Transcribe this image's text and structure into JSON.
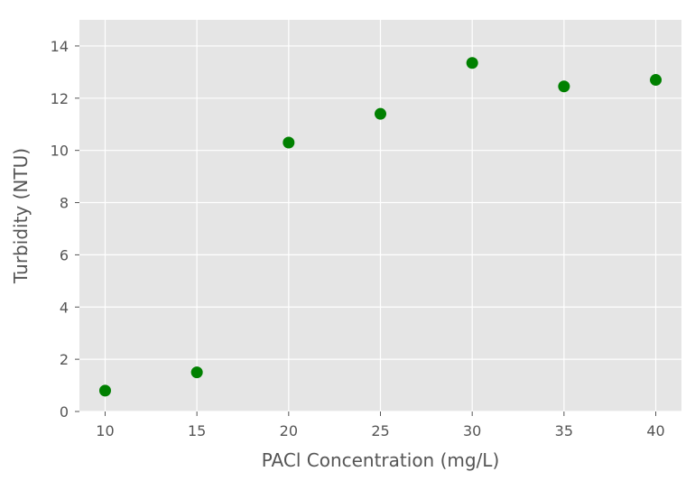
{
  "chart_data": {
    "type": "scatter",
    "title": "",
    "xlabel": "PACl Concentration (mg/L)",
    "ylabel": "Turbidity (NTU)",
    "xlim": [
      8.6,
      41.4
    ],
    "ylim": [
      0,
      15
    ],
    "xticks": [
      10,
      15,
      20,
      25,
      30,
      35,
      40
    ],
    "yticks": [
      0,
      2,
      4,
      6,
      8,
      10,
      12,
      14
    ],
    "grid": true,
    "legend": "none",
    "series": [
      {
        "color": "#008000",
        "x": [
          10,
          15,
          20,
          25,
          30,
          35,
          40
        ],
        "y": [
          0.8,
          1.5,
          10.3,
          11.4,
          13.35,
          12.45,
          12.7
        ]
      }
    ],
    "colors": {
      "plot_background": "#e5e5e5",
      "grid": "#ffffff",
      "text": "#555555"
    }
  }
}
